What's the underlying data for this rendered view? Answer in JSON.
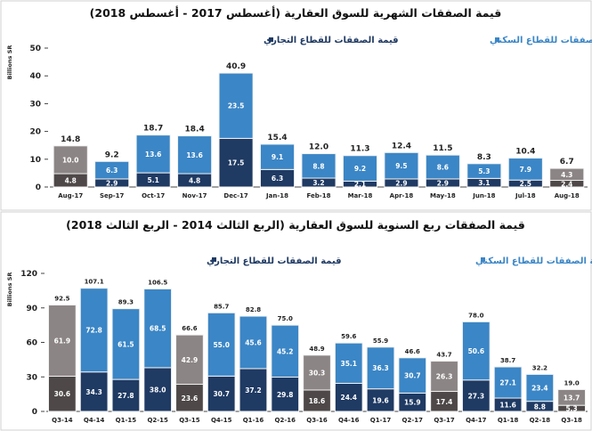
{
  "colors": {
    "residential": "#3b86c6",
    "commercial": "#1f3a63",
    "residential_highlight": "#8c8585",
    "commercial_highlight": "#4e4848",
    "border": "#f2f2f2"
  },
  "chart_data": [
    {
      "type": "bar",
      "stacked": true,
      "title": "قيمة الصفقات الشهرية للسوق العقارية (أغسطس 2017 - أغسطس 2018)",
      "ylabel": "Billions SR",
      "ylim": [
        0,
        50
      ],
      "yticks": [
        0,
        10,
        20,
        30,
        40,
        50
      ],
      "grid": false,
      "legend_position": "top",
      "categories": [
        "Aug-17",
        "Sep-17",
        "Oct-17",
        "Nov-17",
        "Dec-17",
        "Jan-18",
        "Feb-18",
        "Mar-18",
        "Apr-18",
        "May-18",
        "Jun-18",
        "Jul-18",
        "Aug-18"
      ],
      "series": [
        {
          "name": "قيمة الصفقات للقطاع التجاري",
          "key": "commercial",
          "values": [
            4.8,
            2.9,
            5.1,
            4.8,
            17.5,
            6.3,
            3.2,
            2.1,
            2.9,
            2.9,
            3.1,
            2.5,
            2.4
          ],
          "labels": [
            "4.8",
            "2.9",
            "5.1",
            "4.8",
            "17.5",
            "6.3",
            "3.2",
            "2.1",
            "2.9",
            "2.9",
            "3.1",
            "2.5",
            "2.4"
          ]
        },
        {
          "name": "قيمة الصفقات للقطاع السكني",
          "key": "residential",
          "values": [
            10.0,
            6.3,
            13.6,
            13.6,
            23.5,
            9.1,
            8.8,
            9.2,
            9.5,
            8.6,
            5.3,
            7.9,
            4.3
          ],
          "labels": [
            "10.0",
            "6.3",
            "13.6",
            "13.6",
            "23.5",
            "9.1",
            "8.8",
            "9.2",
            "9.5",
            "8.6",
            "5.3",
            "7.9",
            "4.3"
          ]
        }
      ],
      "totals": [
        14.8,
        9.2,
        18.7,
        18.4,
        40.9,
        15.4,
        12.0,
        11.3,
        12.4,
        11.5,
        8.3,
        10.4,
        6.7
      ],
      "total_labels": [
        "14.8",
        "9.2",
        "18.7",
        "18.4",
        "40.9",
        "15.4",
        "12.0",
        "11.3",
        "12.4",
        "11.5",
        "8.3",
        "10.4",
        "6.7"
      ],
      "highlighted": [
        0,
        12
      ]
    },
    {
      "type": "bar",
      "stacked": true,
      "title": "قيمة الصفقات ربع السنوية للسوق العقارية (الربع الثالث 2014 - الربع الثالث 2018)",
      "ylabel": "Billions SR",
      "ylim": [
        0,
        120
      ],
      "yticks": [
        0,
        30,
        60,
        90,
        120
      ],
      "grid": false,
      "legend_position": "top",
      "categories": [
        "Q3-14",
        "Q4-14",
        "Q1-15",
        "Q2-15",
        "Q3-15",
        "Q4-15",
        "Q1-16",
        "Q2-16",
        "Q3-16",
        "Q4-16",
        "Q1-17",
        "Q2-17",
        "Q3-17",
        "Q4-17",
        "Q1-18",
        "Q2-18",
        "Q3-18"
      ],
      "series": [
        {
          "name": "قيمة الصفقات للقطاع التجاري",
          "key": "commercial",
          "values": [
            30.6,
            34.3,
            27.8,
            38.0,
            23.6,
            30.7,
            37.2,
            29.8,
            18.6,
            24.4,
            19.6,
            15.9,
            17.4,
            27.3,
            11.6,
            8.8,
            5.3
          ],
          "labels": [
            "30.6",
            "34.3",
            "27.8",
            "38.0",
            "23.6",
            "30.7",
            "37.2",
            "29.8",
            "18.6",
            "24.4",
            "19.6",
            "15.9",
            "17.4",
            "27.3",
            "11.6",
            "8.8",
            "5.3"
          ]
        },
        {
          "name": "قيمة الصفقات للقطاع السكني",
          "key": "residential",
          "values": [
            61.9,
            72.8,
            61.5,
            68.5,
            42.9,
            55.0,
            45.6,
            45.2,
            30.3,
            35.1,
            36.3,
            30.7,
            26.3,
            50.6,
            27.1,
            23.4,
            13.7
          ],
          "labels": [
            "61.9",
            "72.8",
            "61.5",
            "68.5",
            "42.9",
            "55.0",
            "45.6",
            "45.2",
            "30.3",
            "35.1",
            "36.3",
            "30.7",
            "26.3",
            "50.6",
            "27.1",
            "23.4",
            "13.7"
          ]
        }
      ],
      "totals": [
        92.5,
        107.1,
        89.3,
        106.5,
        66.6,
        85.7,
        82.8,
        75.0,
        48.9,
        59.6,
        55.9,
        46.6,
        43.7,
        78.0,
        38.7,
        32.2,
        19.0
      ],
      "total_labels": [
        "92.5",
        "107.1",
        "89.3",
        "106.5",
        "66.6",
        "85.7",
        "82.8",
        "75.0",
        "48.9",
        "59.6",
        "55.9",
        "46.6",
        "43.7",
        "78.0",
        "38.7",
        "32.2",
        "19.0"
      ],
      "highlighted": [
        0,
        4,
        8,
        12,
        16
      ]
    }
  ]
}
